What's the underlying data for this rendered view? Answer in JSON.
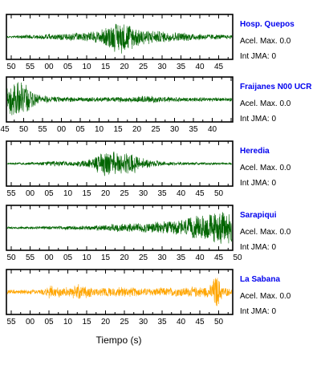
{
  "chart_data": {
    "type": "line",
    "xlabel": "Tiempo (s)",
    "panels": [
      {
        "station": "Hosp. Quepos",
        "acel_max": "Acel. Max. 0.0",
        "int_jma": "Int JMA: 0",
        "color": "#006400",
        "tick_labels": [
          "50",
          "55",
          "00",
          "05",
          "10",
          "15",
          "20",
          "25",
          "30",
          "35",
          "40",
          "45"
        ],
        "envelope": [
          [
            0,
            0.06
          ],
          [
            0.1,
            0.12
          ],
          [
            0.25,
            0.18
          ],
          [
            0.35,
            0.24
          ],
          [
            0.42,
            0.4
          ],
          [
            0.47,
            0.75
          ],
          [
            0.52,
            0.9
          ],
          [
            0.57,
            0.55
          ],
          [
            0.65,
            0.35
          ],
          [
            0.8,
            0.22
          ],
          [
            1,
            0.1
          ]
        ]
      },
      {
        "station": "Fraijanes N00 UCR",
        "acel_max": "Acel. Max. 0.0",
        "int_jma": "Int JMA: 0",
        "color": "#006400",
        "tick_labels": [
          "45",
          "50",
          "55",
          "00",
          "05",
          "10",
          "15",
          "20",
          "25",
          "30",
          "35",
          "40"
        ],
        "envelope": [
          [
            0,
            0.75
          ],
          [
            0.04,
            0.95
          ],
          [
            0.09,
            0.85
          ],
          [
            0.12,
            0.35
          ],
          [
            0.2,
            0.15
          ],
          [
            0.4,
            0.12
          ],
          [
            0.55,
            0.14
          ],
          [
            0.6,
            0.22
          ],
          [
            0.7,
            0.14
          ],
          [
            0.85,
            0.12
          ],
          [
            1,
            0.1
          ]
        ]
      },
      {
        "station": "Heredia",
        "acel_max": "Acel. Max. 0.0",
        "int_jma": "Int JMA: 0",
        "color": "#006400",
        "tick_labels": [
          "55",
          "00",
          "05",
          "10",
          "15",
          "20",
          "25",
          "30",
          "35",
          "40",
          "45",
          "50"
        ],
        "envelope": [
          [
            0,
            0.05
          ],
          [
            0.1,
            0.08
          ],
          [
            0.2,
            0.15
          ],
          [
            0.3,
            0.12
          ],
          [
            0.38,
            0.3
          ],
          [
            0.43,
            0.7
          ],
          [
            0.5,
            0.6
          ],
          [
            0.56,
            0.55
          ],
          [
            0.6,
            0.3
          ],
          [
            0.7,
            0.1
          ],
          [
            1,
            0.05
          ]
        ]
      },
      {
        "station": "Sarapiqui",
        "acel_max": "Acel. Max. 0.0",
        "int_jma": "Int JMA: 0",
        "color": "#006400",
        "tick_labels": [
          "50",
          "55",
          "00",
          "05",
          "10",
          "15",
          "20",
          "25",
          "30",
          "35",
          "40",
          "45",
          "50"
        ],
        "envelope": [
          [
            0,
            0.06
          ],
          [
            0.2,
            0.09
          ],
          [
            0.35,
            0.12
          ],
          [
            0.5,
            0.22
          ],
          [
            0.65,
            0.3
          ],
          [
            0.75,
            0.4
          ],
          [
            0.85,
            0.65
          ],
          [
            0.92,
            0.85
          ],
          [
            1,
            0.95
          ]
        ]
      },
      {
        "station": "La Sabana",
        "acel_max": "Acel. Max. 0.0",
        "int_jma": "Int JMA: 0",
        "color": "#ffa500",
        "tick_labels": [
          "55",
          "00",
          "05",
          "10",
          "15",
          "20",
          "25",
          "30",
          "35",
          "40",
          "45",
          "50"
        ],
        "envelope": [
          [
            0,
            0.12
          ],
          [
            0.15,
            0.14
          ],
          [
            0.2,
            0.4
          ],
          [
            0.25,
            0.2
          ],
          [
            0.32,
            0.45
          ],
          [
            0.4,
            0.2
          ],
          [
            0.5,
            0.3
          ],
          [
            0.6,
            0.22
          ],
          [
            0.75,
            0.25
          ],
          [
            0.9,
            0.3
          ],
          [
            0.93,
            1.0
          ],
          [
            0.96,
            0.3
          ],
          [
            1,
            0.15
          ]
        ]
      }
    ]
  }
}
